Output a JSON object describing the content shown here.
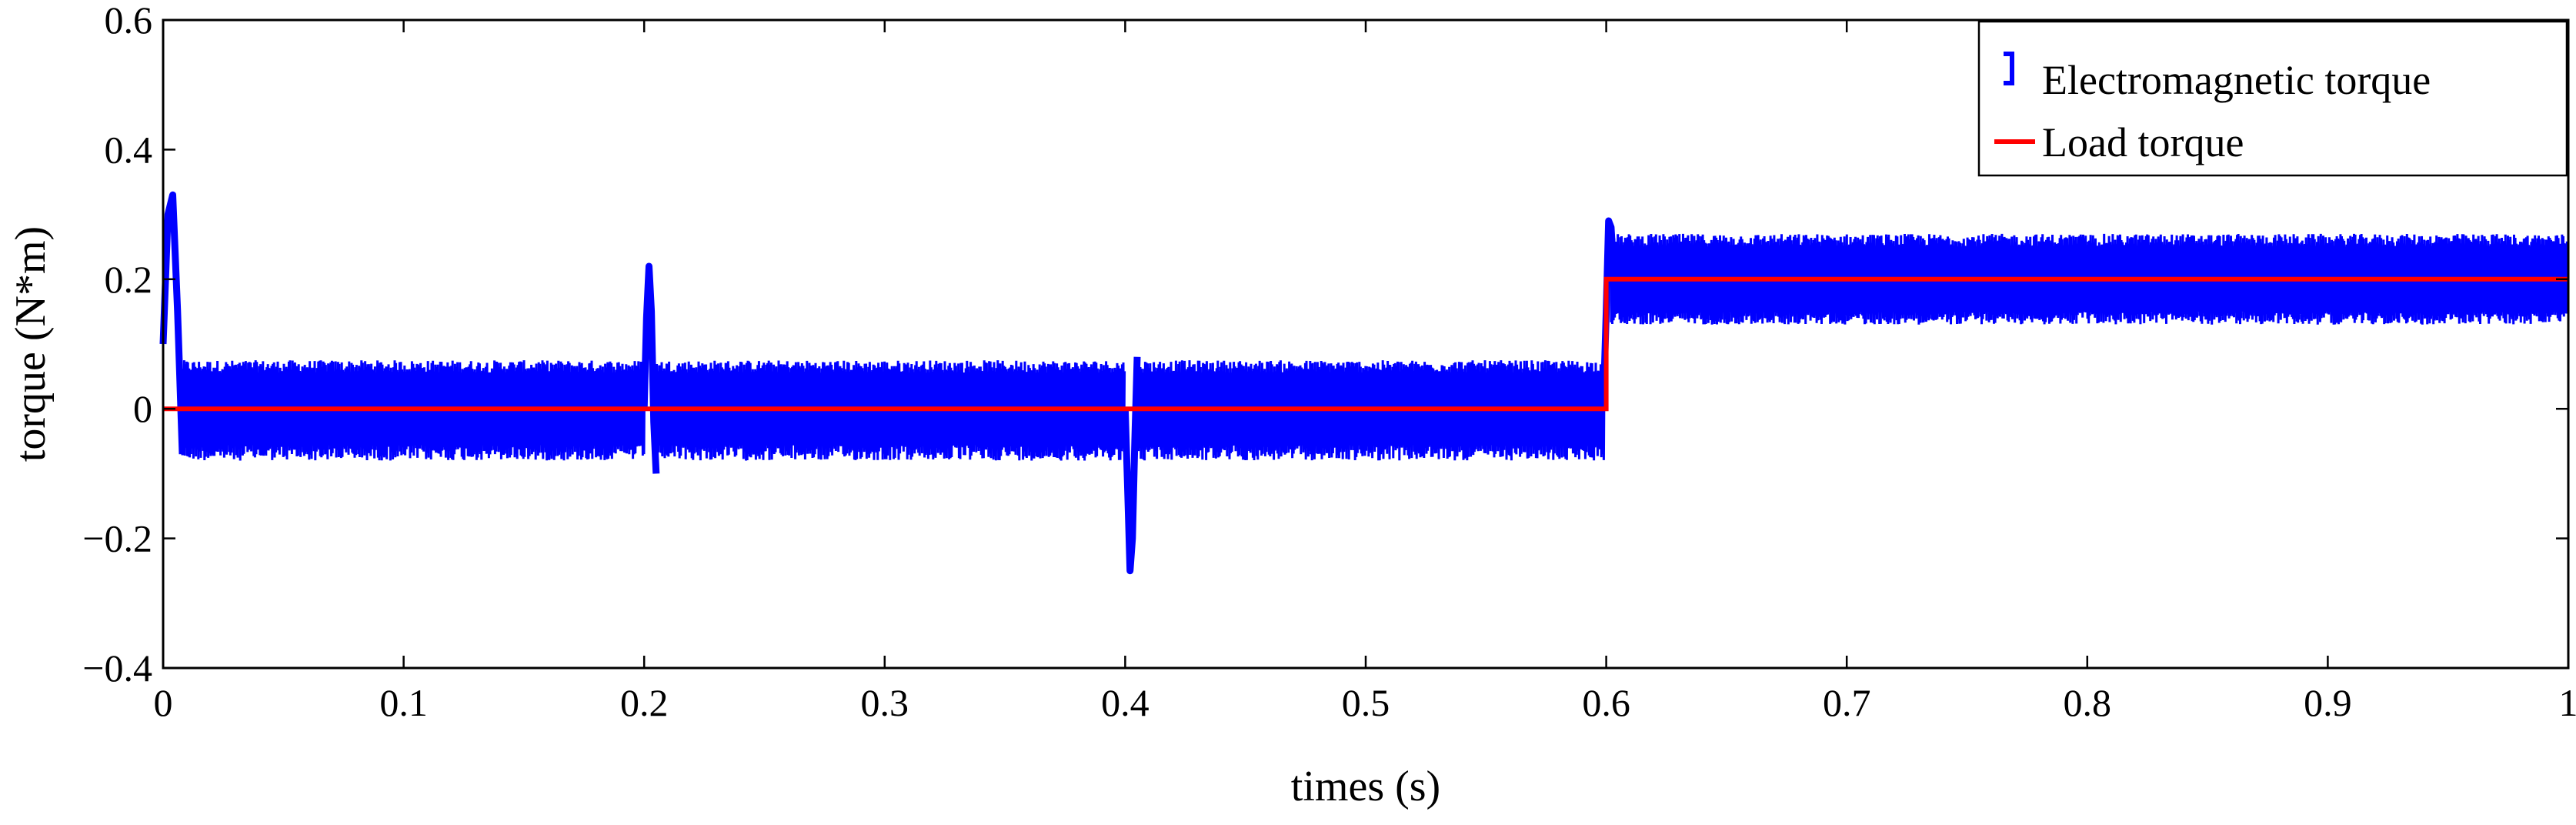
{
  "chart_data": {
    "type": "line",
    "title": "",
    "xlabel": "times (s)",
    "ylabel": "torque (N*m)",
    "xlim": [
      0,
      1
    ],
    "ylim": [
      -0.4,
      0.6
    ],
    "xticks": [
      0,
      0.1,
      0.2,
      0.3,
      0.4,
      0.5,
      0.6,
      0.7,
      0.8,
      0.9,
      1
    ],
    "xtick_labels": [
      "0",
      "0.1",
      "0.2",
      "0.3",
      "0.4",
      "0.5",
      "0.6",
      "0.7",
      "0.8",
      "0.9",
      "1"
    ],
    "yticks": [
      -0.4,
      -0.2,
      0,
      0.2,
      0.4,
      0.6
    ],
    "ytick_labels": [
      "−0.4",
      "−0.2",
      "0",
      "0.2",
      "0.4",
      "0.6"
    ],
    "grid": false,
    "legend_position": "top-right",
    "series": [
      {
        "name": "Electromagnetic torque",
        "color": "#0000ff",
        "style": "noisy band",
        "segments": [
          {
            "x_start": 0.008,
            "x_end": 0.2,
            "mean": 0,
            "band": [
              -0.08,
              0.075
            ]
          },
          {
            "x_start": 0.205,
            "x_end": 0.4,
            "mean": 0,
            "band": [
              -0.08,
              0.075
            ]
          },
          {
            "x_start": 0.405,
            "x_end": 0.599,
            "mean": 0,
            "band": [
              -0.08,
              0.075
            ]
          },
          {
            "x_start": 0.602,
            "x_end": 1.0,
            "mean": 0.2,
            "band": [
              0.13,
              0.27
            ]
          }
        ],
        "transients": [
          {
            "x": [
              0.0,
              0.002,
              0.004,
              0.006,
              0.008
            ],
            "y": [
              0.1,
              0.3,
              0.33,
              0.15,
              -0.07
            ]
          },
          {
            "x": [
              0.2,
              0.201,
              0.202,
              0.203,
              0.204,
              0.205
            ],
            "y": [
              0.0,
              0.14,
              0.22,
              0.15,
              -0.02,
              -0.1
            ]
          },
          {
            "x": [
              0.4,
              0.401,
              0.402,
              0.403,
              0.404,
              0.405
            ],
            "y": [
              0.0,
              -0.12,
              -0.25,
              -0.2,
              -0.05,
              0.08
            ]
          },
          {
            "x": [
              0.599,
              0.6,
              0.601,
              0.602,
              0.603
            ],
            "y": [
              0.03,
              0.15,
              0.29,
              0.28,
              0.22
            ]
          }
        ]
      },
      {
        "name": "Load torque",
        "color": "#ff0000",
        "x": [
          0,
          0.6,
          0.6,
          1.0
        ],
        "y": [
          0,
          0,
          0.2,
          0.2
        ]
      }
    ]
  }
}
